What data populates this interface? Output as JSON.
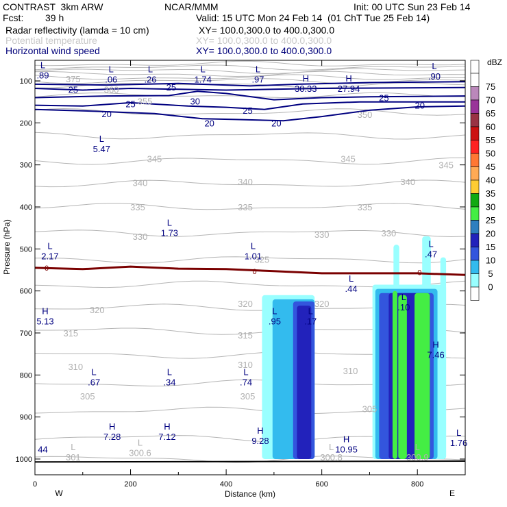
{
  "header": {
    "model": "CONTRAST  3km ARW",
    "source": "NCAR/MMM",
    "init": "Init: 00 UTC Sun 23 Feb 14",
    "fcst_label": "Fcst:",
    "fcst_value": "39 h",
    "valid": "Valid: 15 UTC Mon 24 Feb 14  (01 ChT Tue 25 Feb 14)",
    "fields": [
      {
        "name": "Radar reflectivity (lamda = 10 cm)",
        "xy": "XY= 100.0,300.0 to 400.0,300.0"
      },
      {
        "name": "Potential temperature",
        "xy": "XY= 100.0,300.0 to 400.0,300.0"
      },
      {
        "name": "Horizontal wind speed",
        "xy": "XY= 100.0,300.0 to 400.0,300.0"
      }
    ]
  },
  "chart_data": {
    "type": "cross-section",
    "xlabel": "Distance (km)",
    "ylabel": "Pressure (hPa)",
    "xlim": [
      0,
      900
    ],
    "ylim": [
      1045,
      60
    ],
    "x_ticks": [
      0,
      200,
      400,
      600,
      800
    ],
    "y_ticks": [
      100,
      200,
      300,
      400,
      500,
      600,
      700,
      800,
      900,
      1000
    ],
    "direction_left": "W",
    "direction_right": "E",
    "colorbar": {
      "unit": "dBZ",
      "levels": [
        0,
        5,
        10,
        15,
        20,
        25,
        30,
        35,
        40,
        45,
        50,
        55,
        60,
        65,
        70,
        75
      ],
      "colors": [
        "#ffffff",
        "#99ffff",
        "#33bbee",
        "#3355dd",
        "#2222bb",
        "#2f7fbf",
        "#44ee44",
        "#11aa11",
        "#ffcc33",
        "#ffaa55",
        "#ff7733",
        "#ff2222",
        "#cc1111",
        "#993344",
        "#993399",
        "#bb88bb",
        "#ffffff"
      ]
    },
    "reflectivity_cells": [
      {
        "x": [
          475,
          585
        ],
        "p_top": 610,
        "p_bot": 1000,
        "core_x": [
          545,
          580
        ],
        "max_dbz": 20
      },
      {
        "x": [
          710,
          840
        ],
        "p_top": 530,
        "p_bot": 1000,
        "core_x": [
          745,
          830
        ],
        "max_dbz": 30
      }
    ],
    "freezing_level": {
      "label": "0",
      "x": [
        0,
        100,
        200,
        300,
        400,
        500,
        600,
        700,
        800,
        900
      ],
      "p": [
        545,
        548,
        542,
        547,
        548,
        553,
        558,
        558,
        558,
        562
      ]
    },
    "theta_labels": [
      {
        "text": "375",
        "x": 80,
        "p": 95
      },
      {
        "text": "360",
        "x": 160,
        "p": 120
      },
      {
        "text": "355",
        "x": 230,
        "p": 148
      },
      {
        "text": "350",
        "x": 690,
        "p": 180
      },
      {
        "text": "345",
        "x": 250,
        "p": 285
      },
      {
        "text": "345",
        "x": 655,
        "p": 285
      },
      {
        "text": "345",
        "x": 860,
        "p": 300
      },
      {
        "text": "340",
        "x": 220,
        "p": 342
      },
      {
        "text": "340",
        "x": 440,
        "p": 340
      },
      {
        "text": "340",
        "x": 780,
        "p": 340
      },
      {
        "text": "335",
        "x": 215,
        "p": 400
      },
      {
        "text": "335",
        "x": 440,
        "p": 400
      },
      {
        "text": "335",
        "x": 690,
        "p": 400
      },
      {
        "text": "330",
        "x": 220,
        "p": 470
      },
      {
        "text": "330",
        "x": 600,
        "p": 465
      },
      {
        "text": "330",
        "x": 740,
        "p": 462
      },
      {
        "text": "325",
        "x": 475,
        "p": 525
      },
      {
        "text": "320",
        "x": 130,
        "p": 645
      },
      {
        "text": "320",
        "x": 440,
        "p": 630
      },
      {
        "text": "320",
        "x": 600,
        "p": 630
      },
      {
        "text": "315",
        "x": 75,
        "p": 700
      },
      {
        "text": "315",
        "x": 440,
        "p": 705
      },
      {
        "text": "310",
        "x": 85,
        "p": 780
      },
      {
        "text": "310",
        "x": 440,
        "p": 775
      },
      {
        "text": "310",
        "x": 660,
        "p": 790
      },
      {
        "text": "305",
        "x": 110,
        "p": 850
      },
      {
        "text": "305",
        "x": 445,
        "p": 850
      },
      {
        "text": "305",
        "x": 700,
        "p": 880
      }
    ],
    "wind_labels": [
      {
        "text": "25",
        "x": 80,
        "p": 120
      },
      {
        "text": "25",
        "x": 285,
        "p": 115
      },
      {
        "text": "25",
        "x": 200,
        "p": 155
      },
      {
        "text": "30",
        "x": 335,
        "p": 148
      },
      {
        "text": "25",
        "x": 445,
        "p": 170
      },
      {
        "text": "25",
        "x": 730,
        "p": 140
      },
      {
        "text": "20",
        "x": 150,
        "p": 178
      },
      {
        "text": "20",
        "x": 365,
        "p": 200
      },
      {
        "text": "20",
        "x": 505,
        "p": 200
      },
      {
        "text": "20",
        "x": 805,
        "p": 158
      }
    ],
    "extrema": [
      {
        "letter": "L",
        "value": ".89",
        "x": 5,
        "p": 70
      },
      {
        "letter": "L",
        "value": ".06",
        "x": 148,
        "p": 80
      },
      {
        "letter": "L",
        "value": ".26",
        "x": 230,
        "p": 80
      },
      {
        "letter": "L",
        "value": "1.74",
        "x": 340,
        "p": 80
      },
      {
        "letter": "L",
        "value": ".97",
        "x": 455,
        "p": 80
      },
      {
        "letter": "H",
        "value": "30.33",
        "x": 555,
        "p": 102
      },
      {
        "letter": "H",
        "value": "27.94",
        "x": 645,
        "p": 102
      },
      {
        "letter": "L",
        "value": ".90",
        "x": 824,
        "p": 72
      },
      {
        "letter": "L",
        "value": "5.47",
        "x": 128,
        "p": 245
      },
      {
        "letter": "L",
        "value": "1.73",
        "x": 270,
        "p": 445
      },
      {
        "letter": "L",
        "value": "2.17",
        "x": 20,
        "p": 500
      },
      {
        "letter": "L",
        "value": "1.01",
        "x": 445,
        "p": 500
      },
      {
        "letter": "L",
        "value": ".47",
        "x": 817,
        "p": 495
      },
      {
        "letter": "L",
        "value": ".44",
        "x": 650,
        "p": 578
      },
      {
        "letter": "L",
        "value": ".10",
        "x": 760,
        "p": 622
      },
      {
        "letter": "H",
        "value": "5.13",
        "x": 10,
        "p": 655
      },
      {
        "letter": "L",
        "value": ".95",
        "x": 490,
        "p": 655
      },
      {
        "letter": "L",
        "value": ".17",
        "x": 565,
        "p": 655
      },
      {
        "letter": "H",
        "value": "7.46",
        "x": 827,
        "p": 735
      },
      {
        "letter": "L",
        "value": ".67",
        "x": 112,
        "p": 800
      },
      {
        "letter": "L",
        "value": ".34",
        "x": 270,
        "p": 800
      },
      {
        "letter": "L",
        "value": ".74",
        "x": 430,
        "p": 800
      },
      {
        "letter": "H",
        "value": "7.28",
        "x": 150,
        "p": 930
      },
      {
        "letter": "H",
        "value": "7.12",
        "x": 265,
        "p": 930
      },
      {
        "letter": "H",
        "value": "9.28",
        "x": 460,
        "p": 940
      },
      {
        "letter": "H",
        "value": "10.95",
        "x": 640,
        "p": 960
      },
      {
        "letter": "L",
        "value": "1.76",
        "x": 875,
        "p": 945
      },
      {
        "letter": "",
        "value": "44",
        "x": 5,
        "p": 960
      }
    ],
    "surface_labels": [
      {
        "letter": "L",
        "value": "301",
        "x": 80,
        "p": 985
      },
      {
        "letter": "L",
        "value": "300.6",
        "x": 220,
        "p": 975
      },
      {
        "letter": "L",
        "value": "300.8",
        "x": 620,
        "p": 985
      },
      {
        "letter": "L",
        "value": "300.9",
        "x": 800,
        "p": 985
      }
    ]
  }
}
